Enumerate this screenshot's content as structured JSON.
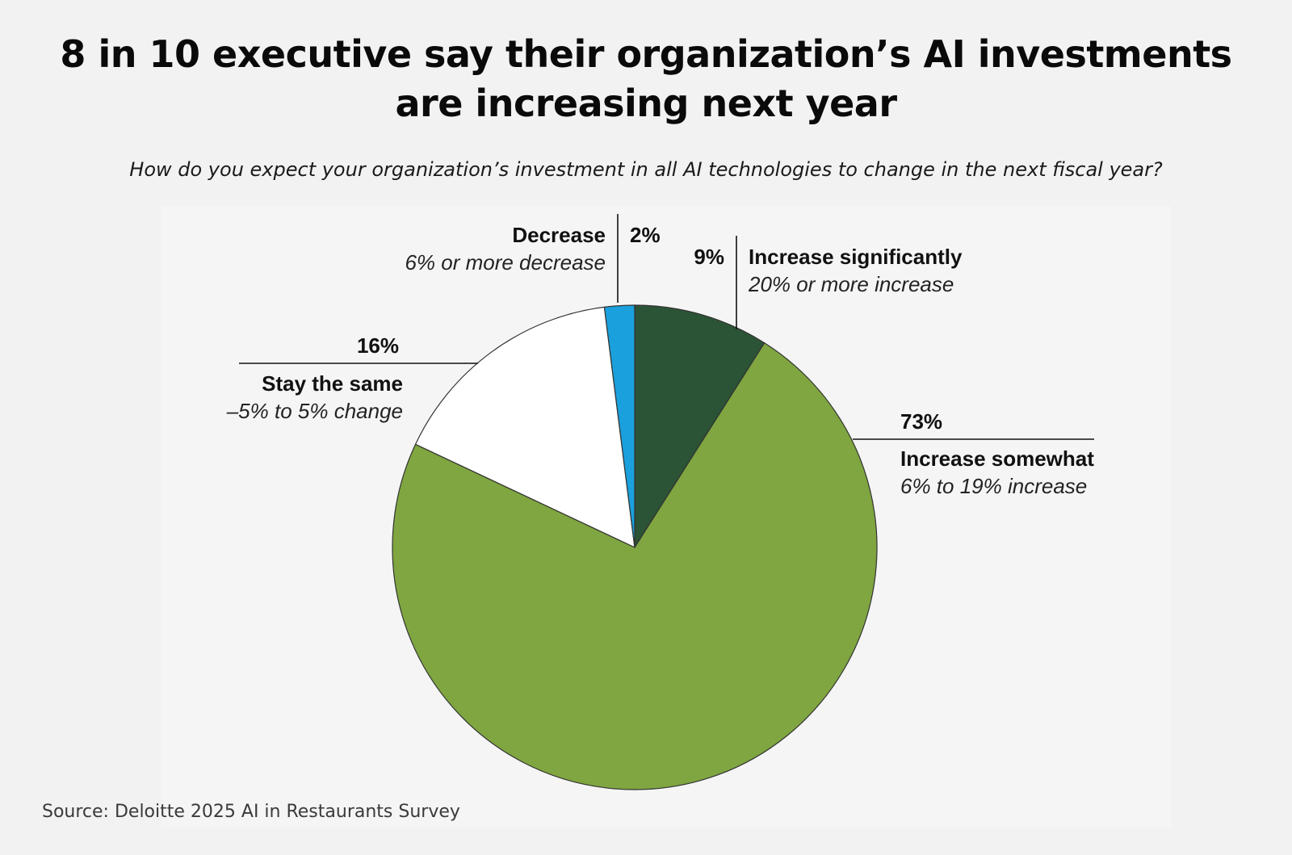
{
  "title_lines": [
    "8 in 10 executive say their organization’s AI investments",
    "are increasing next year"
  ],
  "chart_data": {
    "type": "pie",
    "title": "8 in 10 executive say their organization’s AI investments are increasing next year",
    "subtitle": "How do you expect your organization’s investment in all AI technologies to change in the next fiscal year?",
    "start_angle_deg": 0,
    "direction": "clockwise",
    "slices": [
      {
        "label": "Increase significantly",
        "description": "20% or more increase",
        "value": 9,
        "value_label": "9%",
        "color": "#2b5335"
      },
      {
        "label": "Increase somewhat",
        "description": "6% to 19% increase",
        "value": 73,
        "value_label": "73%",
        "color": "#7fa640"
      },
      {
        "label": "Stay the same",
        "description": "–5% to 5% change",
        "value": 16,
        "value_label": "16%",
        "color": "#ffffff"
      },
      {
        "label": "Decrease",
        "description": "6% or more decrease",
        "value": 2,
        "value_label": "2%",
        "color": "#1aa0dc"
      }
    ]
  },
  "source": "Source: Deloitte 2025 AI in Restaurants Survey"
}
